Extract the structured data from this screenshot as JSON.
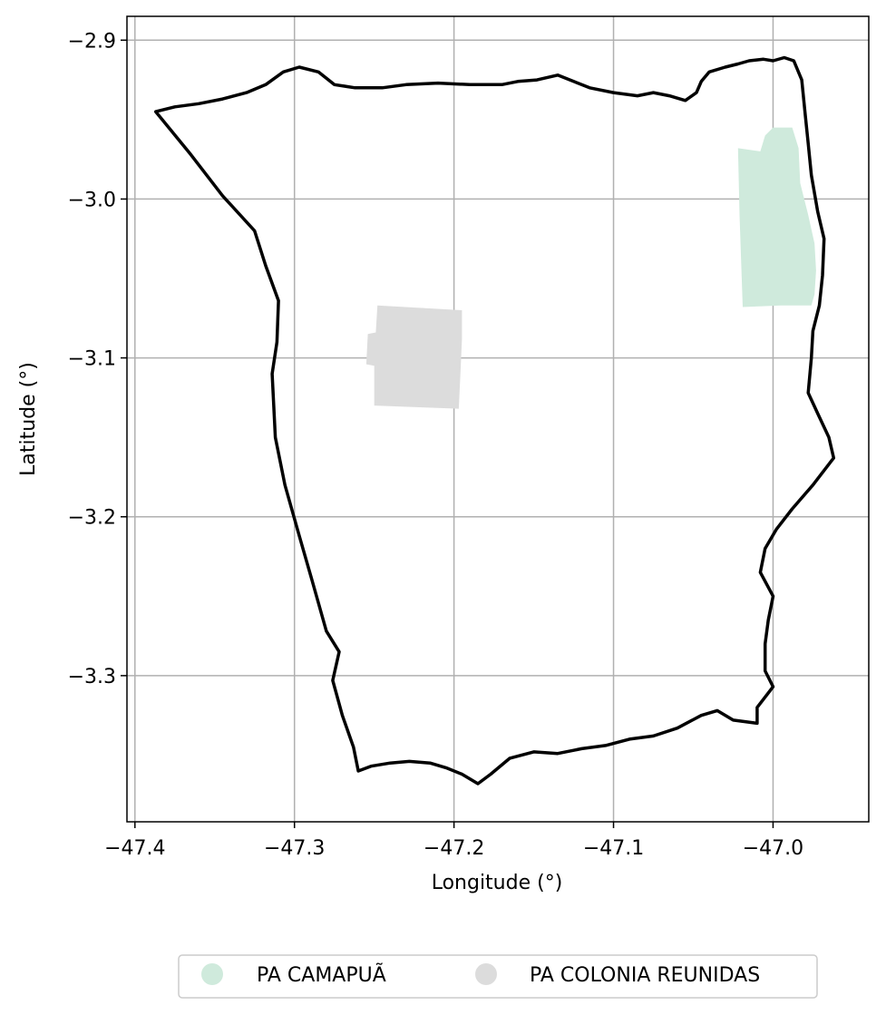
{
  "chart_data": {
    "type": "map",
    "xlabel": "Longitude (°)",
    "ylabel": "Latitude (°)",
    "xlim": [
      -47.405,
      -46.94
    ],
    "ylim": [
      -3.392,
      -2.885
    ],
    "x_ticks": [
      {
        "value": -47.4,
        "label": "−47.4"
      },
      {
        "value": -47.3,
        "label": "−47.3"
      },
      {
        "value": -47.2,
        "label": "−47.2"
      },
      {
        "value": -47.1,
        "label": "−47.1"
      },
      {
        "value": -47.0,
        "label": "−47.0"
      }
    ],
    "y_ticks": [
      {
        "value": -2.9,
        "label": "−2.9"
      },
      {
        "value": -3.0,
        "label": "−3.0"
      },
      {
        "value": -3.1,
        "label": "−3.1"
      },
      {
        "value": -3.2,
        "label": "−3.2"
      },
      {
        "value": -3.3,
        "label": "−3.3"
      }
    ],
    "grid": true,
    "boundary": {
      "color": "#000000",
      "coordinates": [
        [
          -47.387,
          -2.945
        ],
        [
          -47.375,
          -2.942
        ],
        [
          -47.36,
          -2.94
        ],
        [
          -47.345,
          -2.937
        ],
        [
          -47.33,
          -2.933
        ],
        [
          -47.318,
          -2.928
        ],
        [
          -47.307,
          -2.92
        ],
        [
          -47.297,
          -2.917
        ],
        [
          -47.285,
          -2.92
        ],
        [
          -47.275,
          -2.928
        ],
        [
          -47.262,
          -2.93
        ],
        [
          -47.245,
          -2.93
        ],
        [
          -47.23,
          -2.928
        ],
        [
          -47.21,
          -2.927
        ],
        [
          -47.19,
          -2.928
        ],
        [
          -47.17,
          -2.928
        ],
        [
          -47.16,
          -2.926
        ],
        [
          -47.148,
          -2.925
        ],
        [
          -47.135,
          -2.922
        ],
        [
          -47.125,
          -2.926
        ],
        [
          -47.115,
          -2.93
        ],
        [
          -47.1,
          -2.933
        ],
        [
          -47.085,
          -2.935
        ],
        [
          -47.075,
          -2.933
        ],
        [
          -47.065,
          -2.935
        ],
        [
          -47.055,
          -2.938
        ],
        [
          -47.048,
          -2.933
        ],
        [
          -47.045,
          -2.926
        ],
        [
          -47.04,
          -2.92
        ],
        [
          -47.03,
          -2.917
        ],
        [
          -47.022,
          -2.915
        ],
        [
          -47.015,
          -2.913
        ],
        [
          -47.006,
          -2.912
        ],
        [
          -47.0,
          -2.913
        ],
        [
          -46.993,
          -2.911
        ],
        [
          -46.987,
          -2.913
        ],
        [
          -46.982,
          -2.925
        ],
        [
          -46.98,
          -2.945
        ],
        [
          -46.978,
          -2.965
        ],
        [
          -46.976,
          -2.985
        ],
        [
          -46.972,
          -3.008
        ],
        [
          -46.968,
          -3.025
        ],
        [
          -46.969,
          -3.048
        ],
        [
          -46.971,
          -3.067
        ],
        [
          -46.975,
          -3.083
        ],
        [
          -46.976,
          -3.1
        ],
        [
          -46.978,
          -3.122
        ],
        [
          -46.972,
          -3.135
        ],
        [
          -46.965,
          -3.15
        ],
        [
          -46.962,
          -3.163
        ],
        [
          -46.975,
          -3.18
        ],
        [
          -46.988,
          -3.195
        ],
        [
          -46.998,
          -3.208
        ],
        [
          -47.005,
          -3.22
        ],
        [
          -47.008,
          -3.235
        ],
        [
          -47.0,
          -3.25
        ],
        [
          -47.003,
          -3.265
        ],
        [
          -47.005,
          -3.28
        ],
        [
          -47.005,
          -3.297
        ],
        [
          -47.0,
          -3.307
        ],
        [
          -47.01,
          -3.32
        ],
        [
          -47.01,
          -3.33
        ],
        [
          -47.025,
          -3.328
        ],
        [
          -47.035,
          -3.322
        ],
        [
          -47.045,
          -3.325
        ],
        [
          -47.06,
          -3.333
        ],
        [
          -47.075,
          -3.338
        ],
        [
          -47.09,
          -3.34
        ],
        [
          -47.105,
          -3.344
        ],
        [
          -47.12,
          -3.346
        ],
        [
          -47.135,
          -3.349
        ],
        [
          -47.15,
          -3.348
        ],
        [
          -47.165,
          -3.352
        ],
        [
          -47.177,
          -3.362
        ],
        [
          -47.185,
          -3.368
        ],
        [
          -47.195,
          -3.362
        ],
        [
          -47.205,
          -3.358
        ],
        [
          -47.215,
          -3.355
        ],
        [
          -47.228,
          -3.354
        ],
        [
          -47.24,
          -3.355
        ],
        [
          -47.252,
          -3.357
        ],
        [
          -47.26,
          -3.36
        ],
        [
          -47.263,
          -3.345
        ],
        [
          -47.27,
          -3.325
        ],
        [
          -47.276,
          -3.303
        ],
        [
          -47.272,
          -3.285
        ],
        [
          -47.28,
          -3.272
        ],
        [
          -47.289,
          -3.24
        ],
        [
          -47.297,
          -3.212
        ],
        [
          -47.306,
          -3.18
        ],
        [
          -47.312,
          -3.15
        ],
        [
          -47.314,
          -3.11
        ],
        [
          -47.311,
          -3.09
        ],
        [
          -47.31,
          -3.064
        ],
        [
          -47.318,
          -3.042
        ],
        [
          -47.325,
          -3.02
        ],
        [
          -47.345,
          -2.998
        ],
        [
          -47.365,
          -2.972
        ],
        [
          -47.387,
          -2.945
        ]
      ]
    },
    "areas": [
      {
        "name": "PA CAMAPUÃ",
        "color": "#cfeadc",
        "coordinates": [
          [
            -47.022,
            -2.968
          ],
          [
            -47.008,
            -2.97
          ],
          [
            -47.005,
            -2.96
          ],
          [
            -47.0,
            -2.955
          ],
          [
            -46.988,
            -2.955
          ],
          [
            -46.984,
            -2.968
          ],
          [
            -46.983,
            -2.99
          ],
          [
            -46.978,
            -3.01
          ],
          [
            -46.974,
            -3.028
          ],
          [
            -46.973,
            -3.045
          ],
          [
            -46.974,
            -3.06
          ],
          [
            -46.976,
            -3.067
          ],
          [
            -46.995,
            -3.067
          ],
          [
            -47.019,
            -3.068
          ],
          [
            -47.02,
            -3.04
          ],
          [
            -47.021,
            -3.01
          ],
          [
            -47.022,
            -2.968
          ]
        ]
      },
      {
        "name": "PA COLONIA REUNIDAS",
        "color": "#dcdcdc",
        "coordinates": [
          [
            -47.248,
            -3.067
          ],
          [
            -47.195,
            -3.07
          ],
          [
            -47.195,
            -3.088
          ],
          [
            -47.196,
            -3.11
          ],
          [
            -47.197,
            -3.132
          ],
          [
            -47.25,
            -3.13
          ],
          [
            -47.25,
            -3.105
          ],
          [
            -47.255,
            -3.104
          ],
          [
            -47.254,
            -3.085
          ],
          [
            -47.249,
            -3.084
          ],
          [
            -47.248,
            -3.067
          ]
        ]
      }
    ],
    "legend": {
      "placement": "bottom-center",
      "entries": [
        {
          "label": "PA CAMAPUÃ",
          "color": "#cfeadc"
        },
        {
          "label": "PA COLONIA REUNIDAS",
          "color": "#dcdcdc"
        }
      ]
    }
  }
}
